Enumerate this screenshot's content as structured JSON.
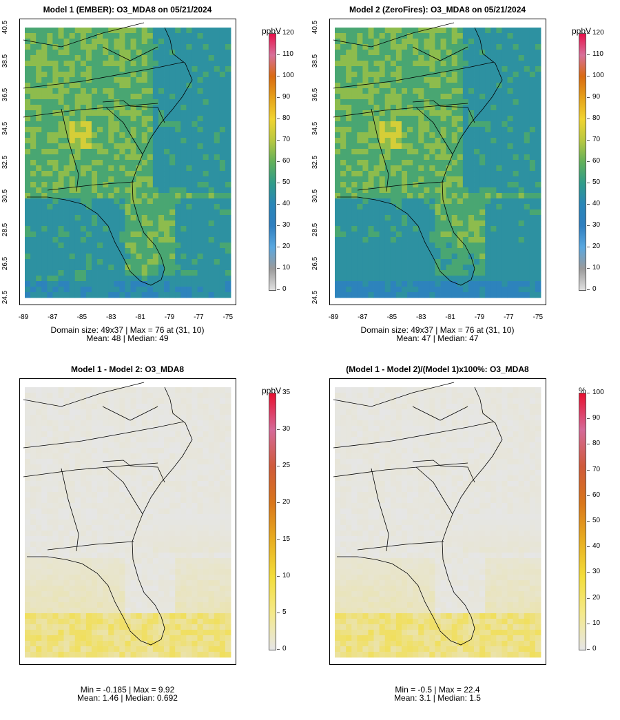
{
  "panels": [
    {
      "title": "Model 1 (EMBER): O3_MDA8 on 05/21/2024",
      "stats_line1": "Domain size: 49x37 | Max = 76 at (31, 10)",
      "stats_line2": "Mean: 48 |  Median: 49",
      "unit": "ppbV",
      "colorbar_ticks": [
        "120",
        "110",
        "100",
        "90",
        "80",
        "70",
        "60",
        "50",
        "40",
        "30",
        "20",
        "10",
        "0"
      ],
      "lat_ticks": [
        "40.5",
        "38.5",
        "36.5",
        "34.5",
        "32.5",
        "30.5",
        "28.5",
        "26.5",
        "24.5"
      ],
      "lon_ticks": [
        "-89",
        "-87",
        "-85",
        "-83",
        "-81",
        "-79",
        "-77",
        "-75"
      ]
    },
    {
      "title": "Model 2 (ZeroFires): O3_MDA8 on 05/21/2024",
      "stats_line1": "Domain size: 49x37 | Max = 76 at (31, 10)",
      "stats_line2": "Mean: 47 |  Median: 47",
      "unit": "ppbV",
      "colorbar_ticks": [
        "120",
        "110",
        "100",
        "90",
        "80",
        "70",
        "60",
        "50",
        "40",
        "30",
        "20",
        "10",
        "0"
      ],
      "lat_ticks": [
        "40.5",
        "38.5",
        "36.5",
        "34.5",
        "32.5",
        "30.5",
        "28.5",
        "26.5",
        "24.5"
      ],
      "lon_ticks": [
        "-89",
        "-87",
        "-85",
        "-83",
        "-81",
        "-79",
        "-77",
        "-75"
      ]
    },
    {
      "title": "Model 1 - Model 2: O3_MDA8",
      "stats_line1": "Min = -0.185 | Max = 9.92",
      "stats_line2": "Mean: 1.46 |  Median: 0.692",
      "unit": "ppbV",
      "colorbar_ticks": [
        "35",
        "30",
        "25",
        "20",
        "15",
        "10",
        "5",
        "0"
      ]
    },
    {
      "title": "(Model 1 - Model 2)/(Model 1)x100%: O3_MDA8",
      "stats_line1": "Min = -0.5 | Max = 22.4",
      "stats_line2": "Mean: 3.1 |  Median: 1.5",
      "unit": "%",
      "colorbar_ticks": [
        "100",
        "90",
        "80",
        "70",
        "60",
        "50",
        "40",
        "30",
        "20",
        "10",
        "0"
      ]
    }
  ],
  "colors": {
    "abs_scale": [
      "#e0e0e0",
      "#9a9a9a",
      "#5aa8e0",
      "#2f7fc0",
      "#2a86b8",
      "#2f9c8a",
      "#62b05a",
      "#b8c840",
      "#f1d430",
      "#e6a21a",
      "#d96a10",
      "#d8709a",
      "#e8104a"
    ],
    "diff_scale": [
      "#e6e6e6",
      "#f4e98a",
      "#f3dd3a",
      "#e8ad20",
      "#d9761a",
      "#cf5a3a",
      "#d56a98",
      "#e81030"
    ],
    "land_line": "#000000"
  }
}
